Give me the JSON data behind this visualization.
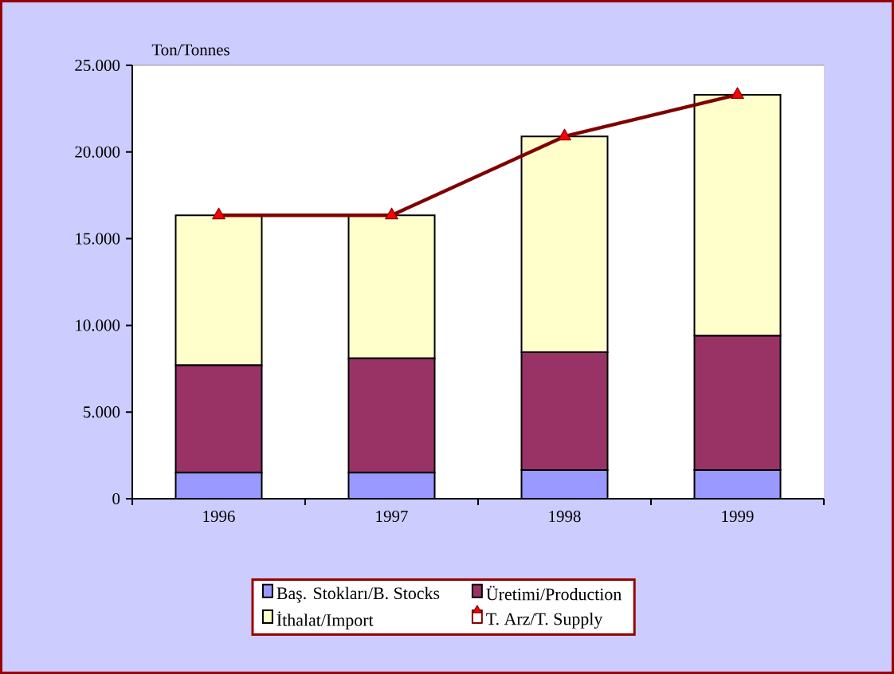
{
  "chart_data": {
    "type": "bar",
    "stacked": true,
    "ylabel": "Ton/Tonnes",
    "categories": [
      "1996",
      "1997",
      "1998",
      "1999"
    ],
    "series": [
      {
        "name": "Baş. Stokları/B. Stocks",
        "color": "#9999ff",
        "values": [
          1500,
          1500,
          1650,
          1650
        ]
      },
      {
        "name": "Üretimi/Production",
        "color": "#993366",
        "values": [
          6200,
          6600,
          6800,
          7750
        ]
      },
      {
        "name": "İthalat/Import",
        "color": "#ffffcc",
        "values": [
          8650,
          8250,
          12450,
          13900
        ]
      },
      {
        "name": "T. Arz/T. Supply",
        "type": "line",
        "color": "#800000",
        "marker": "triangle",
        "values": [
          16350,
          16350,
          20900,
          23300
        ]
      }
    ],
    "ylim": [
      0,
      25000
    ],
    "yticks": [
      {
        "value": 0,
        "label": "0"
      },
      {
        "value": 5000,
        "label": "5.000"
      },
      {
        "value": 10000,
        "label": "10.000"
      },
      {
        "value": 15000,
        "label": "15.000"
      },
      {
        "value": 20000,
        "label": "20.000"
      },
      {
        "value": 25000,
        "label": "25.000"
      }
    ],
    "grid": false,
    "legend": "bottom"
  }
}
